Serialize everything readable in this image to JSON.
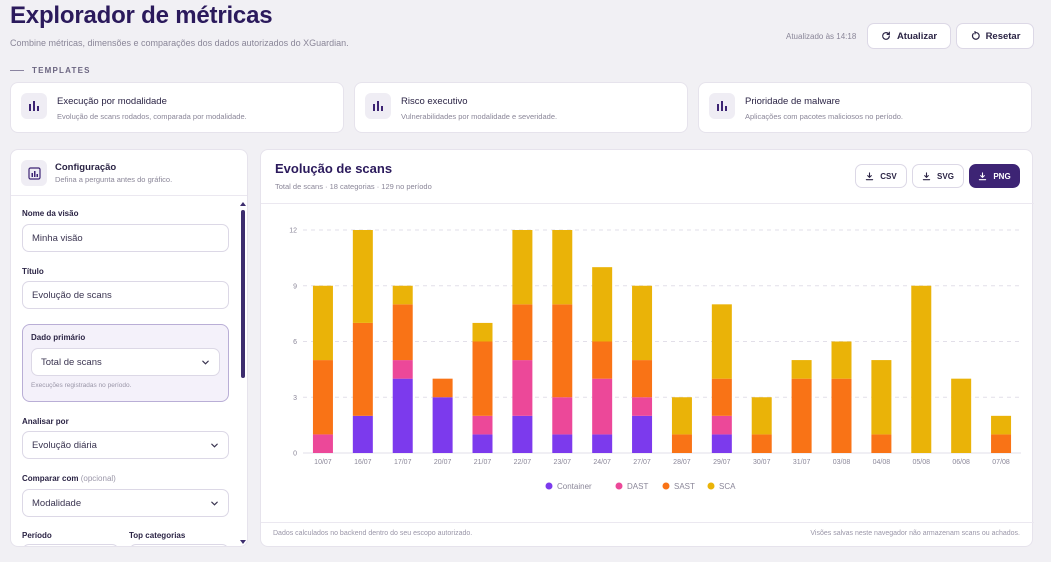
{
  "header": {
    "title": "Explorador de métricas",
    "subtitle": "Combine métricas, dimensões e comparações dos dados autorizados do XGuardian.",
    "updated": "Atualizado às 14:18",
    "refresh_label": "Atualizar",
    "reset_label": "Resetar"
  },
  "templates": {
    "heading": "TEMPLATES",
    "items": [
      {
        "title": "Execução por modalidade",
        "desc": "Evolução de scans rodados, comparada por modalidade."
      },
      {
        "title": "Risco executivo",
        "desc": "Vulnerabilidades por modalidade e severidade."
      },
      {
        "title": "Prioridade de malware",
        "desc": "Aplicações com pacotes maliciosos no período."
      }
    ]
  },
  "config": {
    "title": "Configuração",
    "subtitle": "Defina a pergunta antes do gráfico.",
    "view_name_label": "Nome da visão",
    "view_name_value": "Minha visão",
    "title_label": "Título",
    "title_value": "Evolução de scans",
    "primary_label": "Dado primário",
    "primary_value": "Total de scans",
    "primary_hint": "Execuções registradas no período.",
    "analyze_label": "Analisar por",
    "analyze_value": "Evolução diária",
    "compare_label": "Comparar com",
    "compare_optional": "(opcional)",
    "compare_value": "Modalidade",
    "period_label": "Período",
    "top_label": "Top categorias"
  },
  "chart_panel": {
    "title": "Evolução de scans",
    "subtitle": "Total de scans · 18 categorias · 129 no período",
    "csv_label": "CSV",
    "svg_label": "SVG",
    "png_label": "PNG",
    "footer_left": "Dados calculados no backend dentro do seu escopo autorizado.",
    "footer_right": "Visões salvas neste navegador não armazenam scans ou achados."
  },
  "colors": {
    "Container": "#7c3aed",
    "DAST": "#ec4899",
    "SAST": "#f97316",
    "SCA": "#eab308"
  },
  "chart_data": {
    "type": "bar",
    "stacked": true,
    "categories": [
      "10/07",
      "16/07",
      "17/07",
      "20/07",
      "21/07",
      "22/07",
      "23/07",
      "24/07",
      "27/07",
      "28/07",
      "29/07",
      "30/07",
      "31/07",
      "03/08",
      "04/08",
      "05/08",
      "06/08",
      "07/08"
    ],
    "series": [
      {
        "name": "Container",
        "values": [
          0,
          2,
          4,
          3,
          1,
          2,
          1,
          1,
          2,
          0,
          1,
          0,
          0,
          0,
          0,
          0,
          0,
          0
        ]
      },
      {
        "name": "DAST",
        "values": [
          1,
          0,
          1,
          0,
          1,
          3,
          2,
          3,
          1,
          0,
          1,
          0,
          0,
          0,
          0,
          0,
          0,
          0
        ]
      },
      {
        "name": "SAST",
        "values": [
          4,
          5,
          3,
          1,
          4,
          3,
          5,
          2,
          2,
          1,
          2,
          1,
          4,
          4,
          1,
          0,
          0,
          1
        ]
      },
      {
        "name": "SCA",
        "values": [
          4,
          5,
          1,
          0,
          1,
          4,
          4,
          4,
          4,
          2,
          4,
          2,
          1,
          2,
          4,
          9,
          4,
          1
        ]
      }
    ],
    "yticks": [
      0,
      3,
      6,
      9,
      12
    ],
    "ylim": [
      0,
      12
    ],
    "legend_position": "bottom"
  }
}
